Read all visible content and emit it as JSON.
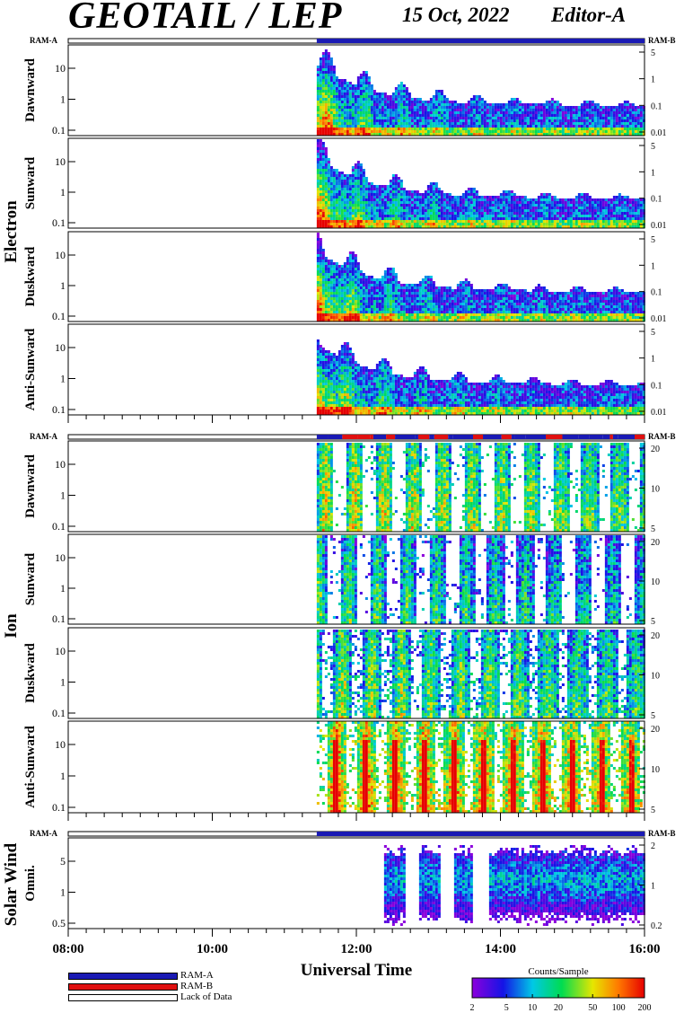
{
  "header": {
    "title": "GEOTAIL / LEP",
    "date": "15 Oct, 2022",
    "editor": "Editor-A"
  },
  "chart_data": {
    "type": "heatmap",
    "title": "GEOTAIL / LEP",
    "xlabel": "Universal Time",
    "x_ticks": [
      "08:00",
      "10:00",
      "12:00",
      "14:00",
      "16:00"
    ],
    "xlim": [
      "08:00",
      "16:00"
    ],
    "data_start": "11:27",
    "mode_bar_labels": {
      "left": "RAM-A",
      "right": "RAM-B"
    },
    "groups": [
      {
        "name": "Electron",
        "mode_bar": {
          "segments": [
            {
              "from": "08:00",
              "to": "11:27",
              "mode": "Lack of Data"
            },
            {
              "from": "11:27",
              "to": "16:00",
              "mode": "RAM-A"
            }
          ]
        },
        "panels": [
          {
            "label": "Dawnward",
            "y_ticks": [
              "10",
              "1",
              "0.1"
            ],
            "right_ticks": [
              "5",
              "1",
              "0.1",
              "0.01"
            ]
          },
          {
            "label": "Sunward",
            "y_ticks": [
              "10",
              "1",
              "0.1"
            ],
            "right_ticks": [
              "5",
              "1",
              "0.1",
              "0.01"
            ]
          },
          {
            "label": "Duskward",
            "y_ticks": [
              "10",
              "1",
              "0.1"
            ],
            "right_ticks": [
              "5",
              "1",
              "0.1",
              "0.01"
            ]
          },
          {
            "label": "Anti-Sunward",
            "y_ticks": [
              "10",
              "1",
              "0.1"
            ],
            "right_ticks": [
              "5",
              "1",
              "0.1",
              "0.01"
            ]
          }
        ]
      },
      {
        "name": "Ion",
        "mode_bar": {
          "segments": [
            {
              "from": "08:00",
              "to": "11:27",
              "mode": "Lack of Data"
            },
            {
              "from": "11:27",
              "to": "16:00",
              "mode": "Mixed RAM-A / RAM-B"
            }
          ]
        },
        "panels": [
          {
            "label": "Dawnward",
            "y_ticks": [
              "10",
              "1",
              "0.1"
            ],
            "right_ticks": [
              "20",
              "10",
              "5"
            ]
          },
          {
            "label": "Sunward",
            "y_ticks": [
              "10",
              "1",
              "0.1"
            ],
            "right_ticks": [
              "20",
              "10",
              "5"
            ]
          },
          {
            "label": "Duskward",
            "y_ticks": [
              "10",
              "1",
              "0.1"
            ],
            "right_ticks": [
              "20",
              "10",
              "5"
            ]
          },
          {
            "label": "Anti-Sunward",
            "y_ticks": [
              "10",
              "1",
              "0.1"
            ],
            "right_ticks": [
              "20",
              "10",
              "5"
            ]
          }
        ]
      },
      {
        "name": "Solar Wind",
        "mode_bar": {
          "segments": [
            {
              "from": "08:00",
              "to": "11:27",
              "mode": "Lack of Data"
            },
            {
              "from": "11:27",
              "to": "16:00",
              "mode": "RAM-A"
            }
          ]
        },
        "panels": [
          {
            "label": "Omni.",
            "y_ticks": [
              "5",
              "1",
              "0.5"
            ],
            "right_ticks": [
              "2",
              "1",
              "0.2"
            ]
          }
        ]
      }
    ],
    "legend": [
      {
        "label": "RAM-A",
        "color": "#1a1ab4"
      },
      {
        "label": "RAM-B",
        "color": "#e01010"
      },
      {
        "label": "Lack of Data",
        "color": "#ffffff"
      }
    ],
    "colorbar": {
      "title": "Counts/Sample",
      "ticks": [
        "2",
        "5",
        "10",
        "20",
        "50",
        "100",
        "200"
      ],
      "range": [
        2,
        200
      ],
      "scale": "log",
      "colormap": "rainbow (violet-blue-cyan-green-yellow-red)"
    }
  }
}
